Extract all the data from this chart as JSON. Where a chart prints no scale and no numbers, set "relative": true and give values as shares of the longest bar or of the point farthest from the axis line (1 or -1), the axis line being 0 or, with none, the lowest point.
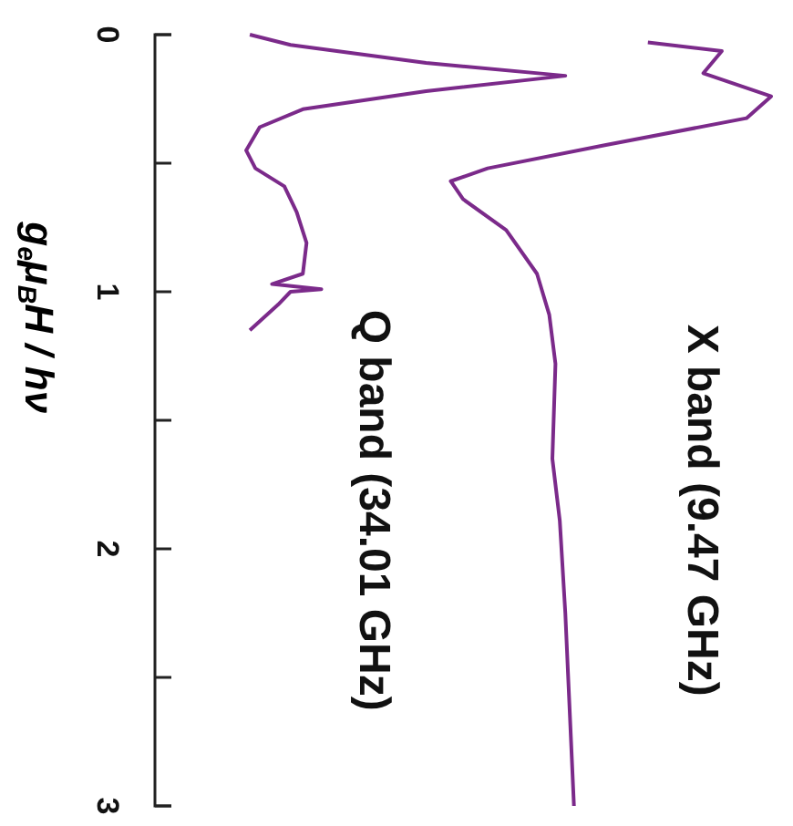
{
  "chart_data": {
    "type": "line",
    "orientation": "horizontal",
    "relative": true,
    "ylabel": "g$_{e}$μ$_{B}$H / hν",
    "ylim": [
      3,
      0
    ],
    "yticks": [
      0,
      {
        "value": 0.5,
        "label": null
      },
      1,
      {
        "value": 1.5,
        "label": null
      },
      2,
      {
        "value": 2.5,
        "label": null
      },
      3
    ],
    "grid": false,
    "marker": "none",
    "line_style": "solid",
    "series": [
      {
        "name": "X band (9.47 GHz)",
        "color": "#7b2a8a",
        "x": [
          0.03,
          0.064,
          0.15,
          0.24,
          0.325,
          0.43,
          0.52,
          0.57,
          0.64,
          0.76,
          0.93,
          1.09,
          1.28,
          1.65,
          1.89,
          2.25,
          3.0
        ],
        "values": [
          0.8,
          0.92,
          0.89,
          1.0,
          0.96,
          0.73,
          0.54,
          0.48,
          0.5,
          0.57,
          0.62,
          0.64,
          0.65,
          0.645,
          0.657,
          0.666,
          0.68
        ]
      },
      {
        "name": "Q band (34.01 GHz)",
        "color": "#7b2a8a",
        "x": [
          0.0,
          0.04,
          0.11,
          0.16,
          0.22,
          0.29,
          0.36,
          0.45,
          0.52,
          0.59,
          0.69,
          0.81,
          0.93,
          0.97,
          0.99,
          1.0,
          1.05,
          1.15
        ],
        "values": [
          0.154,
          0.22,
          0.44,
          0.666,
          0.44,
          0.24,
          0.17,
          0.148,
          0.163,
          0.21,
          0.23,
          0.246,
          0.24,
          0.19,
          0.27,
          0.22,
          0.2,
          0.154
        ]
      }
    ]
  }
}
